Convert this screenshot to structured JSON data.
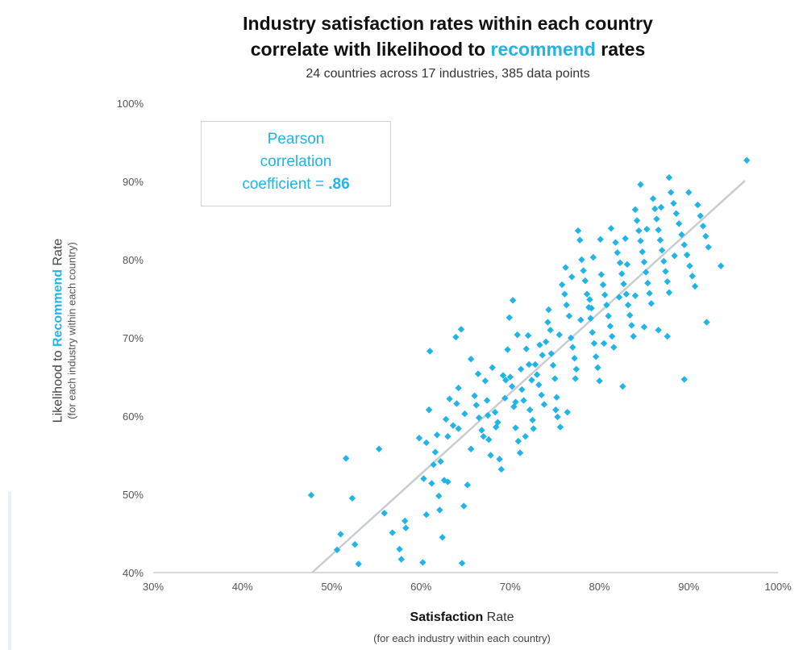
{
  "header": {
    "title_line1": "Industry satisfaction rates within each country",
    "title_line2_pre": "correlate with likelihood to",
    "title_line2_highlight": "recommend",
    "title_line2_post": "rates",
    "subtitle": "24 countries across 17 industries, 385 data points"
  },
  "annotation": {
    "line1": "Pearson",
    "line2": "correlation",
    "line3_pre": "coefficient =",
    "line3_value": ".86"
  },
  "axes": {
    "ylabel_pre": "Likelihood to",
    "ylabel_highlight": "Recommend",
    "ylabel_post": "Rate",
    "ylabel_sub": "(for each industry within each country)",
    "xlabel_bold": "Satisfaction",
    "xlabel_post": "Rate",
    "xlabel_sub": "(for each industry within each country)"
  },
  "colors": {
    "accent": "#21b4e6",
    "trendline": "#c8cdd2",
    "axis": "#b0b5ba"
  },
  "chart_data": {
    "type": "scatter",
    "title": "Industry satisfaction rates within each country correlate with likelihood to recommend rates",
    "subtitle": "24 countries across 17 industries, 385 data points",
    "xlabel": "Satisfaction Rate",
    "ylabel": "Likelihood to Recommend Rate",
    "xlim": [
      30,
      100
    ],
    "ylim": [
      40,
      100
    ],
    "x_ticks": [
      "30%",
      "40%",
      "50%",
      "60%",
      "70%",
      "80%",
      "90%",
      "100%"
    ],
    "y_ticks": [
      "40%",
      "50%",
      "60%",
      "70%",
      "80%",
      "90%",
      "100%"
    ],
    "trendline": [
      [
        47.8,
        40
      ],
      [
        96.3,
        90.1
      ]
    ],
    "pearson_r": 0.86,
    "grid": false,
    "points": [
      [
        47.7,
        49.9
      ],
      [
        51.0,
        44.9
      ],
      [
        51.6,
        54.6
      ],
      [
        52.3,
        49.5
      ],
      [
        52.6,
        43.6
      ],
      [
        53.0,
        41.1
      ],
      [
        50.6,
        42.9
      ],
      [
        55.3,
        55.8
      ],
      [
        55.9,
        47.6
      ],
      [
        56.8,
        45.1
      ],
      [
        57.6,
        43.0
      ],
      [
        57.8,
        41.7
      ],
      [
        58.2,
        46.6
      ],
      [
        58.3,
        45.7
      ],
      [
        60.2,
        41.3
      ],
      [
        60.6,
        47.4
      ],
      [
        60.9,
        60.8
      ],
      [
        61.0,
        68.3
      ],
      [
        61.2,
        51.4
      ],
      [
        61.6,
        55.4
      ],
      [
        61.8,
        57.6
      ],
      [
        62.1,
        48.0
      ],
      [
        62.2,
        54.2
      ],
      [
        62.4,
        44.5
      ],
      [
        62.6,
        51.8
      ],
      [
        63.0,
        51.6
      ],
      [
        63.0,
        57.4
      ],
      [
        63.6,
        58.8
      ],
      [
        63.9,
        70.1
      ],
      [
        64.2,
        58.4
      ],
      [
        64.2,
        63.6
      ],
      [
        64.5,
        71.1
      ],
      [
        64.6,
        41.2
      ],
      [
        64.8,
        48.5
      ],
      [
        65.2,
        51.2
      ],
      [
        65.6,
        55.8
      ],
      [
        66.0,
        62.6
      ],
      [
        66.2,
        61.4
      ],
      [
        66.5,
        59.8
      ],
      [
        66.8,
        58.2
      ],
      [
        67.0,
        57.4
      ],
      [
        67.2,
        64.5
      ],
      [
        67.4,
        62.0
      ],
      [
        67.6,
        57.0
      ],
      [
        67.8,
        55.0
      ],
      [
        68.0,
        66.2
      ],
      [
        68.3,
        60.5
      ],
      [
        68.6,
        59.2
      ],
      [
        68.8,
        54.5
      ],
      [
        69.0,
        53.2
      ],
      [
        69.2,
        65.2
      ],
      [
        69.5,
        64.6
      ],
      [
        69.7,
        68.5
      ],
      [
        70.0,
        65.0
      ],
      [
        70.2,
        63.8
      ],
      [
        70.3,
        74.8
      ],
      [
        70.4,
        61.2
      ],
      [
        70.6,
        58.5
      ],
      [
        70.9,
        56.8
      ],
      [
        71.1,
        55.3
      ],
      [
        71.3,
        63.4
      ],
      [
        71.5,
        62.0
      ],
      [
        71.8,
        68.6
      ],
      [
        72.0,
        70.3
      ],
      [
        72.2,
        60.8
      ],
      [
        72.5,
        59.5
      ],
      [
        72.6,
        58.4
      ],
      [
        72.8,
        66.6
      ],
      [
        73.0,
        65.3
      ],
      [
        73.2,
        64.0
      ],
      [
        73.5,
        62.7
      ],
      [
        73.8,
        61.5
      ],
      [
        74.0,
        69.5
      ],
      [
        74.2,
        72.0
      ],
      [
        74.5,
        71.0
      ],
      [
        74.6,
        68.0
      ],
      [
        74.8,
        66.5
      ],
      [
        75.0,
        64.8
      ],
      [
        75.1,
        60.8
      ],
      [
        75.3,
        59.9
      ],
      [
        75.6,
        58.6
      ],
      [
        75.8,
        76.8
      ],
      [
        76.1,
        75.6
      ],
      [
        76.3,
        74.2
      ],
      [
        76.6,
        72.8
      ],
      [
        76.8,
        70.0
      ],
      [
        77.0,
        68.8
      ],
      [
        77.2,
        67.4
      ],
      [
        77.4,
        66.0
      ],
      [
        77.6,
        83.7
      ],
      [
        77.8,
        82.5
      ],
      [
        78.0,
        80.0
      ],
      [
        78.2,
        78.6
      ],
      [
        78.4,
        77.3
      ],
      [
        78.6,
        75.6
      ],
      [
        78.8,
        73.9
      ],
      [
        79.0,
        72.5
      ],
      [
        79.2,
        70.7
      ],
      [
        79.4,
        69.3
      ],
      [
        79.6,
        67.6
      ],
      [
        79.8,
        66.2
      ],
      [
        80.0,
        64.5
      ],
      [
        80.2,
        78.1
      ],
      [
        80.4,
        76.8
      ],
      [
        80.6,
        75.5
      ],
      [
        80.8,
        74.2
      ],
      [
        81.0,
        72.8
      ],
      [
        81.2,
        71.5
      ],
      [
        81.4,
        70.2
      ],
      [
        81.6,
        68.8
      ],
      [
        81.8,
        82.2
      ],
      [
        82.0,
        80.9
      ],
      [
        82.3,
        79.6
      ],
      [
        82.5,
        78.2
      ],
      [
        82.7,
        76.9
      ],
      [
        83.0,
        75.6
      ],
      [
        83.2,
        74.2
      ],
      [
        83.4,
        72.9
      ],
      [
        83.6,
        71.6
      ],
      [
        83.8,
        70.2
      ],
      [
        84.0,
        86.4
      ],
      [
        84.2,
        85.0
      ],
      [
        84.4,
        83.7
      ],
      [
        84.6,
        82.4
      ],
      [
        84.8,
        81.0
      ],
      [
        85.0,
        79.7
      ],
      [
        85.2,
        78.4
      ],
      [
        85.4,
        77.0
      ],
      [
        85.6,
        75.7
      ],
      [
        85.8,
        74.4
      ],
      [
        86.0,
        87.8
      ],
      [
        86.2,
        86.5
      ],
      [
        86.4,
        85.2
      ],
      [
        86.6,
        83.8
      ],
      [
        86.8,
        82.5
      ],
      [
        87.0,
        81.2
      ],
      [
        87.2,
        79.8
      ],
      [
        87.4,
        78.5
      ],
      [
        87.6,
        77.2
      ],
      [
        87.8,
        75.8
      ],
      [
        88.0,
        88.6
      ],
      [
        88.3,
        87.2
      ],
      [
        88.6,
        85.9
      ],
      [
        88.9,
        84.6
      ],
      [
        89.2,
        83.2
      ],
      [
        89.5,
        81.9
      ],
      [
        89.8,
        80.6
      ],
      [
        90.1,
        79.2
      ],
      [
        90.4,
        77.9
      ],
      [
        90.7,
        76.6
      ],
      [
        91.0,
        87.0
      ],
      [
        91.3,
        85.6
      ],
      [
        91.6,
        84.3
      ],
      [
        91.9,
        83.0
      ],
      [
        92.2,
        81.6
      ],
      [
        90.0,
        88.6
      ],
      [
        89.5,
        64.7
      ],
      [
        92.0,
        72.0
      ],
      [
        93.6,
        79.2
      ],
      [
        96.5,
        92.7
      ],
      [
        87.8,
        90.5
      ],
      [
        84.6,
        89.6
      ],
      [
        85.3,
        83.9
      ],
      [
        86.9,
        86.7
      ],
      [
        88.4,
        80.5
      ],
      [
        82.6,
        63.8
      ],
      [
        82.2,
        75.2
      ],
      [
        80.5,
        69.3
      ],
      [
        79.1,
        73.8
      ],
      [
        77.3,
        64.8
      ],
      [
        76.4,
        60.5
      ],
      [
        75.2,
        62.4
      ],
      [
        73.6,
        67.8
      ],
      [
        72.4,
        64.6
      ],
      [
        71.7,
        57.4
      ],
      [
        70.6,
        61.8
      ],
      [
        69.4,
        62.3
      ],
      [
        68.4,
        58.6
      ],
      [
        67.5,
        60.1
      ],
      [
        66.4,
        65.4
      ],
      [
        65.6,
        67.3
      ],
      [
        64.9,
        60.3
      ],
      [
        64.0,
        61.6
      ],
      [
        63.2,
        62.2
      ],
      [
        62.8,
        59.6
      ],
      [
        62.0,
        49.8
      ],
      [
        61.4,
        53.8
      ],
      [
        60.6,
        56.6
      ],
      [
        60.3,
        52.0
      ],
      [
        59.8,
        57.2
      ],
      [
        85.0,
        71.4
      ],
      [
        86.6,
        71.0
      ],
      [
        87.6,
        70.2
      ],
      [
        84.0,
        75.4
      ],
      [
        83.1,
        79.4
      ],
      [
        82.9,
        82.7
      ],
      [
        81.3,
        84.0
      ],
      [
        80.1,
        82.6
      ],
      [
        79.3,
        80.3
      ],
      [
        78.9,
        74.9
      ],
      [
        77.9,
        72.3
      ],
      [
        76.9,
        77.8
      ],
      [
        76.2,
        79.0
      ],
      [
        75.5,
        70.4
      ],
      [
        74.3,
        73.6
      ],
      [
        73.3,
        69.1
      ],
      [
        72.1,
        66.6
      ],
      [
        71.2,
        66.0
      ],
      [
        70.8,
        70.4
      ],
      [
        69.9,
        72.6
      ]
    ]
  }
}
